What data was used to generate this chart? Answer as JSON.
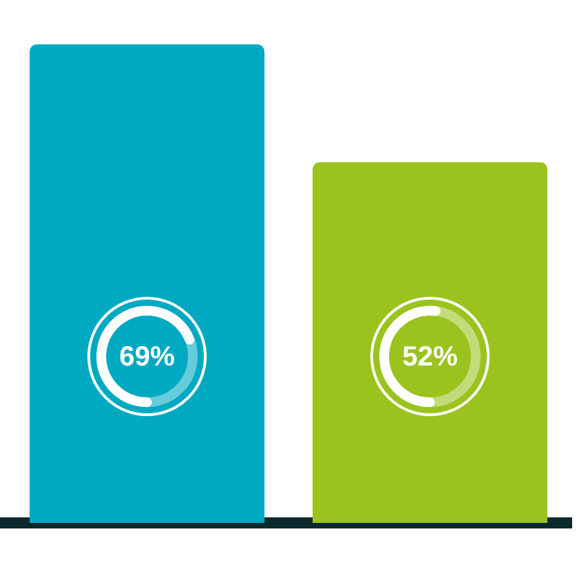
{
  "chart_data": {
    "type": "bar",
    "categories": [
      null,
      null
    ],
    "values": [
      69,
      52
    ],
    "colors": [
      "#00a9c2",
      "#9bc31e"
    ],
    "value_labels": [
      "69%",
      "52%"
    ],
    "grid": false,
    "legend": false
  }
}
